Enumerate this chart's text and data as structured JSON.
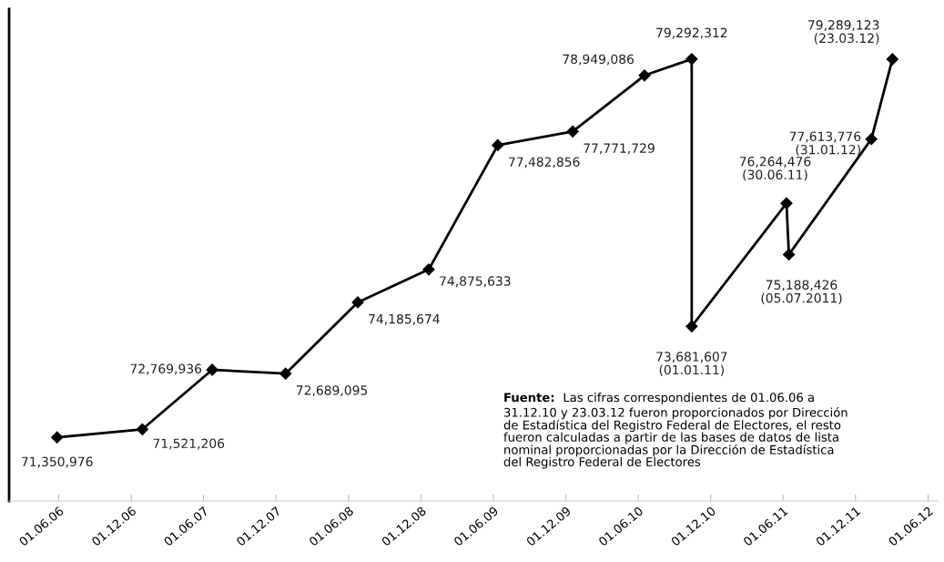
{
  "chart_data": {
    "type": "line",
    "x": [
      "2006-05-28",
      "2006-12-29",
      "2007-06-23",
      "2007-12-25",
      "2008-06-24",
      "2008-12-20",
      "2009-06-12",
      "2009-12-18",
      "2010-06-17",
      "2010-10-14",
      "2010-10-14",
      "2011-06-10",
      "2011-06-16",
      "2012-01-10",
      "2012-03-03"
    ],
    "series": [
      {
        "color": "#000000",
        "values": [
          71350976,
          71521206,
          72769936,
          72689095,
          74185674,
          74875633,
          77482856,
          77771729,
          78949086,
          79292312,
          73681607,
          76264476,
          75188426,
          77613776,
          79289123
        ],
        "value_labels": [
          "71,350,976",
          "71,521,206",
          "72,769,936",
          "72,689,095",
          "74,185,674",
          "74,875,633",
          "77,482,856",
          "77,771,729",
          "78,949,086",
          "79,292,312",
          "73,681,607\n(01.01.11)",
          "76,264,476\n(30.06.11)",
          "75,188,426\n(05.07.2011)",
          "77,613,776\n(31.01.12)",
          "79,289,123\n(23.03.12)"
        ]
      }
    ],
    "xlim": [
      "2006-01-27",
      "2012-06-25"
    ],
    "xticks": [
      {
        "value": "2006-06-01",
        "label": "01.06.06"
      },
      {
        "value": "2006-12-01",
        "label": "01.12.06"
      },
      {
        "value": "2007-06-01",
        "label": "01.06.07"
      },
      {
        "value": "2007-12-01",
        "label": "01.12.07"
      },
      {
        "value": "2008-06-01",
        "label": "01.06.08"
      },
      {
        "value": "2008-12-01",
        "label": "01.12.08"
      },
      {
        "value": "2009-06-01",
        "label": "01.06.09"
      },
      {
        "value": "2009-12-01",
        "label": "01.12.09"
      },
      {
        "value": "2010-06-01",
        "label": "01.06.10"
      },
      {
        "value": "2010-12-01",
        "label": "01.12.10"
      },
      {
        "value": "2011-06-01",
        "label": "01.06.11"
      },
      {
        "value": "2011-12-01",
        "label": "01.12.11"
      },
      {
        "value": "2012-06-01",
        "label": "01.06.12"
      }
    ],
    "tick_labels": "x",
    "marker": "diamond",
    "line_style": "solid",
    "grid": false,
    "legend": false,
    "annotations": [
      "Fuente:  Las cifras correspondientes de 01.06.06 a\n31.12.10 y 23.03.12 fueron proporcionados por Dirección\nde Estadística del Registro Federal de Electores, el resto\nfueron calculadas a partir de las bases de datos de lista\nnominal proporcionadas por la Dirección de Estadística\ndel Registro Federal de Electores"
    ]
  }
}
